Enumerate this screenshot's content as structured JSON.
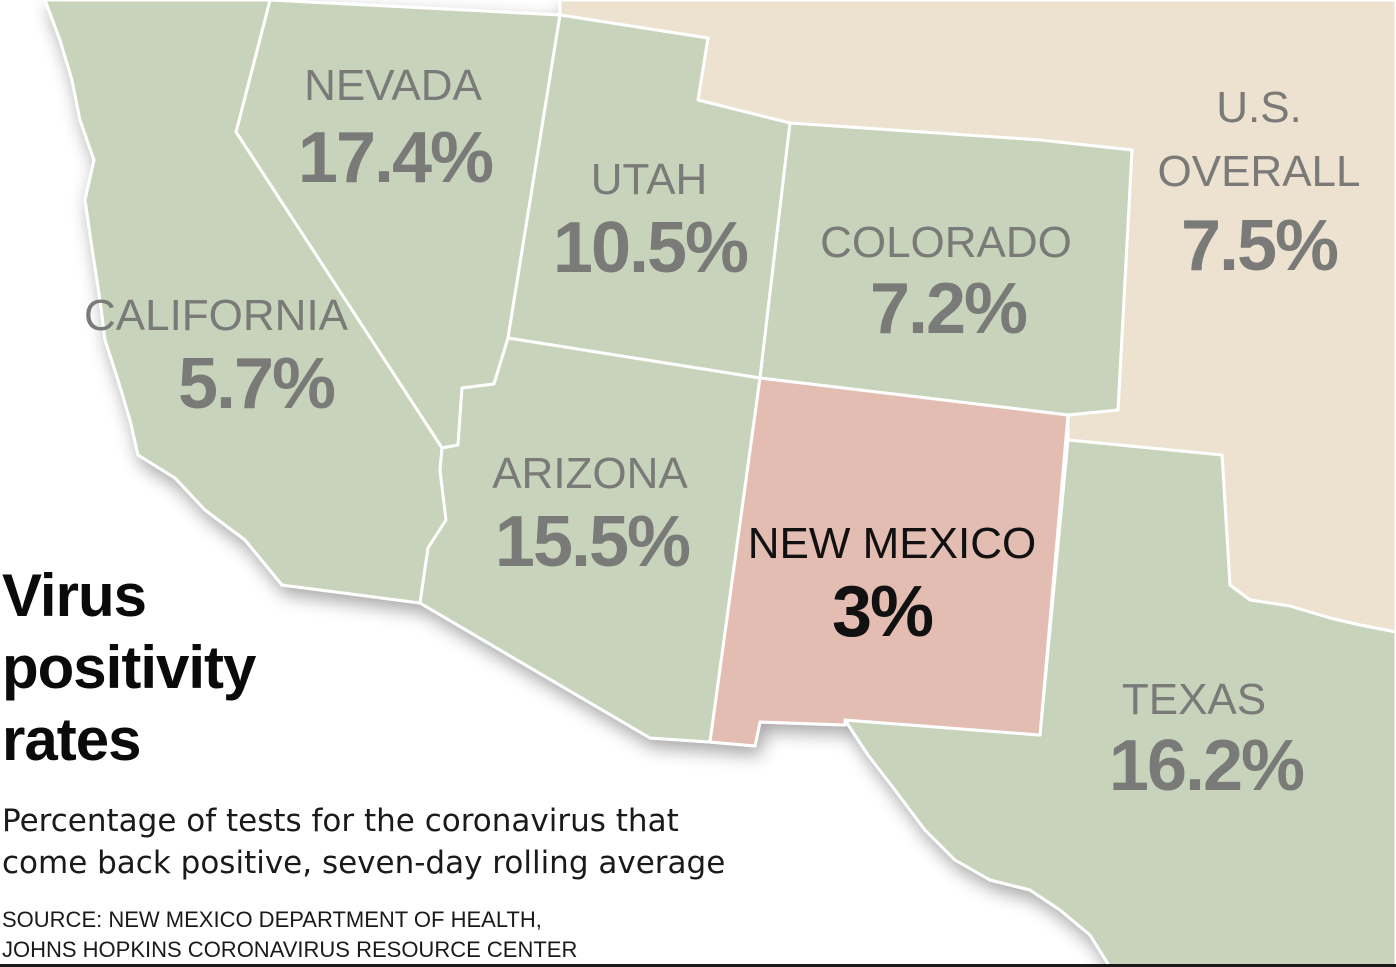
{
  "title": {
    "line1": "Virus",
    "line2": "positivity",
    "line3": "rates"
  },
  "subtitle": {
    "line1": "Percentage of tests for the coronavirus that",
    "line2": "come back positive, seven-day rolling average"
  },
  "source": {
    "line1": "SOURCE: NEW MEXICO DEPARTMENT OF HEALTH,",
    "line2": "JOHNS HOPKINS CORONAVIRUS RESOURCE CENTER"
  },
  "colors": {
    "ocean": "#ffffff",
    "region": "#c8d3bb",
    "highlight": "#e3bdb2",
    "other_states": "#ece2cf",
    "label": "#7a7a78",
    "highlight_label": "#111111"
  },
  "states": [
    {
      "id": "nevada",
      "name": "NEVADA",
      "value": "17.4%"
    },
    {
      "id": "utah",
      "name": "UTAH",
      "value": "10.5%"
    },
    {
      "id": "colorado",
      "name": "COLORADO",
      "value": "7.2%"
    },
    {
      "id": "california",
      "name": "CALIFORNIA",
      "value": "5.7%"
    },
    {
      "id": "arizona",
      "name": "ARIZONA",
      "value": "15.5%"
    },
    {
      "id": "new-mexico",
      "name": "NEW MEXICO",
      "value": "3%",
      "highlight": true
    },
    {
      "id": "texas",
      "name": "TEXAS",
      "value": "16.2%"
    }
  ],
  "us_overall": {
    "line1": "U.S.",
    "line2": "OVERALL",
    "value": "7.5%"
  }
}
